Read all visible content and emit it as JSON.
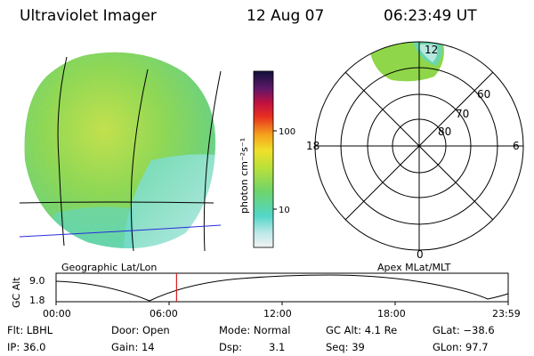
{
  "header": {
    "instrument": "Ultraviolet Imager",
    "date": "12 Aug 07",
    "time": "06:23:49 UT"
  },
  "geo_panel": {
    "label": "Geographic Lat/Lon"
  },
  "colorbar": {
    "unit_label": "photon cm⁻²s⁻¹",
    "ticks": [
      "100",
      "10"
    ]
  },
  "polar_panel": {
    "label": "Apex MLat/MLT",
    "mlt_labels": {
      "top": "12",
      "left": "18",
      "right": "6",
      "bottom": "0"
    },
    "lat_labels": [
      "60",
      "70",
      "80"
    ]
  },
  "altitude_plot": {
    "ylabel": "GC Alt",
    "ytick_top": "9.0",
    "ytick_bottom": "1.8",
    "xticks": [
      "00:00",
      "06:00",
      "12:00",
      "18:00",
      "23:59"
    ],
    "marker_fraction": 0.2665
  },
  "status": {
    "flt": "Flt: LBHL",
    "ip": "IP: 36.0",
    "door": "Door: Open",
    "gain": "Gain: 14",
    "mode": "Mode: Normal",
    "dsp_label": "Dsp:",
    "dsp_value": "3.1",
    "gc_alt": "GC Alt: 4.1 Re",
    "seq": "Seq: 39",
    "glat": "GLat: −38.6",
    "glon": "GLon:  97.7"
  },
  "colors": {
    "background": "#ffffff",
    "text": "#000000",
    "aurora_green": "#7fd34a",
    "aurora_yellow": "#c8e040",
    "aurora_cyan": "#5fd6c4",
    "aurora_pale": "#c8ecec",
    "marker_red": "#d81e1e",
    "track_blue": "#2a2adc"
  }
}
